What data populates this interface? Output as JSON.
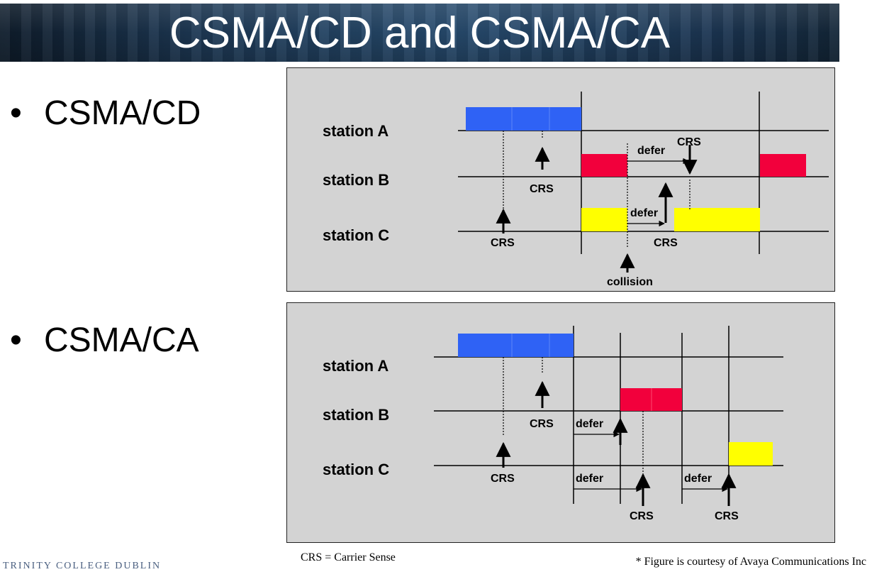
{
  "header": {
    "title": "CSMA/CD and CSMA/CA"
  },
  "bullets": [
    {
      "bullet_char": "•",
      "text": "CSMA/CD"
    },
    {
      "bullet_char": "•",
      "text": "CSMA/CA"
    }
  ],
  "diagrams": {
    "csma_cd": {
      "stations": [
        "station A",
        "station B",
        "station C"
      ],
      "labels": {
        "crs": "CRS",
        "defer": "defer",
        "collision": "collision"
      }
    },
    "csma_ca": {
      "stations": [
        "station A",
        "station B",
        "station C"
      ],
      "labels": {
        "crs": "CRS",
        "defer": "defer"
      }
    }
  },
  "colors": {
    "frame_a": "#2f62f5",
    "frame_b": "#f2003c",
    "frame_c": "#ffff00",
    "panel_bg": "#d3d3d3"
  },
  "footnotes": {
    "left": "CRS =  Carrier Sense",
    "right": "* Figure is courtesy of Avaya Communications Inc"
  },
  "logo_text": "TRINITY COLLEGE DUBLIN"
}
